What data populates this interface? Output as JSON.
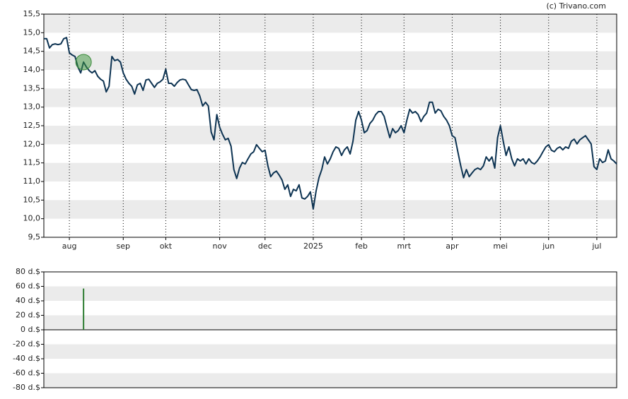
{
  "copyright": "(c) Trivano.com",
  "chart_data": [
    {
      "type": "line",
      "color": "#0d3352",
      "ylim": [
        9.5,
        15.5
      ],
      "yticks": [
        {
          "value": 15.5,
          "label": "15,5"
        },
        {
          "value": 15.0,
          "label": "15,0"
        },
        {
          "value": 14.5,
          "label": "14,5"
        },
        {
          "value": 14.0,
          "label": "14,0"
        },
        {
          "value": 13.5,
          "label": "13,5"
        },
        {
          "value": 13.0,
          "label": "13,0"
        },
        {
          "value": 12.5,
          "label": "12,5"
        },
        {
          "value": 12.0,
          "label": "12,0"
        },
        {
          "value": 11.5,
          "label": "11,5"
        },
        {
          "value": 11.0,
          "label": "11,0"
        },
        {
          "value": 10.5,
          "label": "10,5"
        },
        {
          "value": 10.0,
          "label": "10,0"
        },
        {
          "value": 9.5,
          "label": "9,5"
        }
      ],
      "xlim": [
        0,
        202
      ],
      "xticks": [
        {
          "value": 9,
          "label": "aug"
        },
        {
          "value": 28,
          "label": "sep"
        },
        {
          "value": 43,
          "label": "okt"
        },
        {
          "value": 62,
          "label": "nov"
        },
        {
          "value": 78,
          "label": "dec"
        },
        {
          "value": 95,
          "label": "2025"
        },
        {
          "value": 112,
          "label": "feb"
        },
        {
          "value": 127,
          "label": "mrt"
        },
        {
          "value": 144,
          "label": "apr"
        },
        {
          "value": 161,
          "label": "mei"
        },
        {
          "value": 178,
          "label": "jun"
        },
        {
          "value": 195,
          "label": "jul"
        }
      ],
      "values": [
        14.84,
        14.84,
        14.59,
        14.68,
        14.7,
        14.68,
        14.7,
        14.84,
        14.87,
        14.46,
        14.4,
        14.36,
        14.08,
        13.92,
        14.21,
        14.08,
        13.98,
        13.92,
        13.98,
        13.83,
        13.75,
        13.7,
        13.41,
        13.56,
        14.36,
        14.25,
        14.28,
        14.21,
        13.92,
        13.75,
        13.64,
        13.56,
        13.35,
        13.6,
        13.64,
        13.45,
        13.73,
        13.75,
        13.64,
        13.53,
        13.64,
        13.68,
        13.75,
        14.02,
        13.64,
        13.64,
        13.56,
        13.66,
        13.73,
        13.75,
        13.73,
        13.6,
        13.47,
        13.45,
        13.47,
        13.3,
        13.03,
        13.13,
        13.03,
        12.33,
        12.12,
        12.8,
        12.46,
        12.27,
        12.12,
        12.16,
        11.95,
        11.32,
        11.08,
        11.36,
        11.51,
        11.47,
        11.61,
        11.74,
        11.8,
        11.99,
        11.89,
        11.8,
        11.84,
        11.42,
        11.13,
        11.23,
        11.28,
        11.17,
        11.04,
        10.79,
        10.91,
        10.6,
        10.79,
        10.75,
        10.91,
        10.56,
        10.53,
        10.6,
        10.72,
        10.26,
        10.75,
        11.1,
        11.32,
        11.66,
        11.47,
        11.61,
        11.8,
        11.93,
        11.89,
        11.7,
        11.85,
        11.93,
        11.74,
        12.08,
        12.65,
        12.88,
        12.65,
        12.31,
        12.37,
        12.56,
        12.65,
        12.8,
        12.88,
        12.88,
        12.75,
        12.46,
        12.18,
        12.42,
        12.31,
        12.37,
        12.5,
        12.31,
        12.65,
        12.94,
        12.84,
        12.88,
        12.8,
        12.61,
        12.75,
        12.84,
        13.13,
        13.13,
        12.84,
        12.94,
        12.9,
        12.75,
        12.65,
        12.5,
        12.23,
        12.18,
        11.8,
        11.42,
        11.1,
        11.32,
        11.13,
        11.23,
        11.32,
        11.36,
        11.32,
        11.42,
        11.66,
        11.55,
        11.66,
        11.36,
        12.18,
        12.5,
        12.08,
        11.7,
        11.93,
        11.61,
        11.42,
        11.61,
        11.55,
        11.61,
        11.47,
        11.61,
        11.51,
        11.47,
        11.55,
        11.66,
        11.8,
        11.93,
        11.99,
        11.84,
        11.8,
        11.89,
        11.93,
        11.85,
        11.93,
        11.89,
        12.08,
        12.14,
        12.01,
        12.12,
        12.18,
        12.23,
        12.12,
        12.01,
        11.4,
        11.32,
        11.61,
        11.51,
        11.55,
        11.85,
        11.61,
        11.55,
        11.47
      ]
    },
    {
      "type": "bar",
      "color": "#2e7d32",
      "ylim": [
        -80,
        80
      ],
      "yticks": [
        {
          "value": 80,
          "label": "80 d.$"
        },
        {
          "value": 60,
          "label": "60 d.$"
        },
        {
          "value": 40,
          "label": "40 d.$"
        },
        {
          "value": 20,
          "label": "20 d.$"
        },
        {
          "value": 0,
          "label": "0 d.$"
        },
        {
          "value": -20,
          "label": "-20 d.$"
        },
        {
          "value": -40,
          "label": "-40 d.$"
        },
        {
          "value": -60,
          "label": "-60 d.$"
        },
        {
          "value": -80,
          "label": "-80 d.$"
        }
      ],
      "xlim": [
        0,
        202
      ],
      "x": [
        14
      ],
      "values": [
        57
      ]
    }
  ]
}
